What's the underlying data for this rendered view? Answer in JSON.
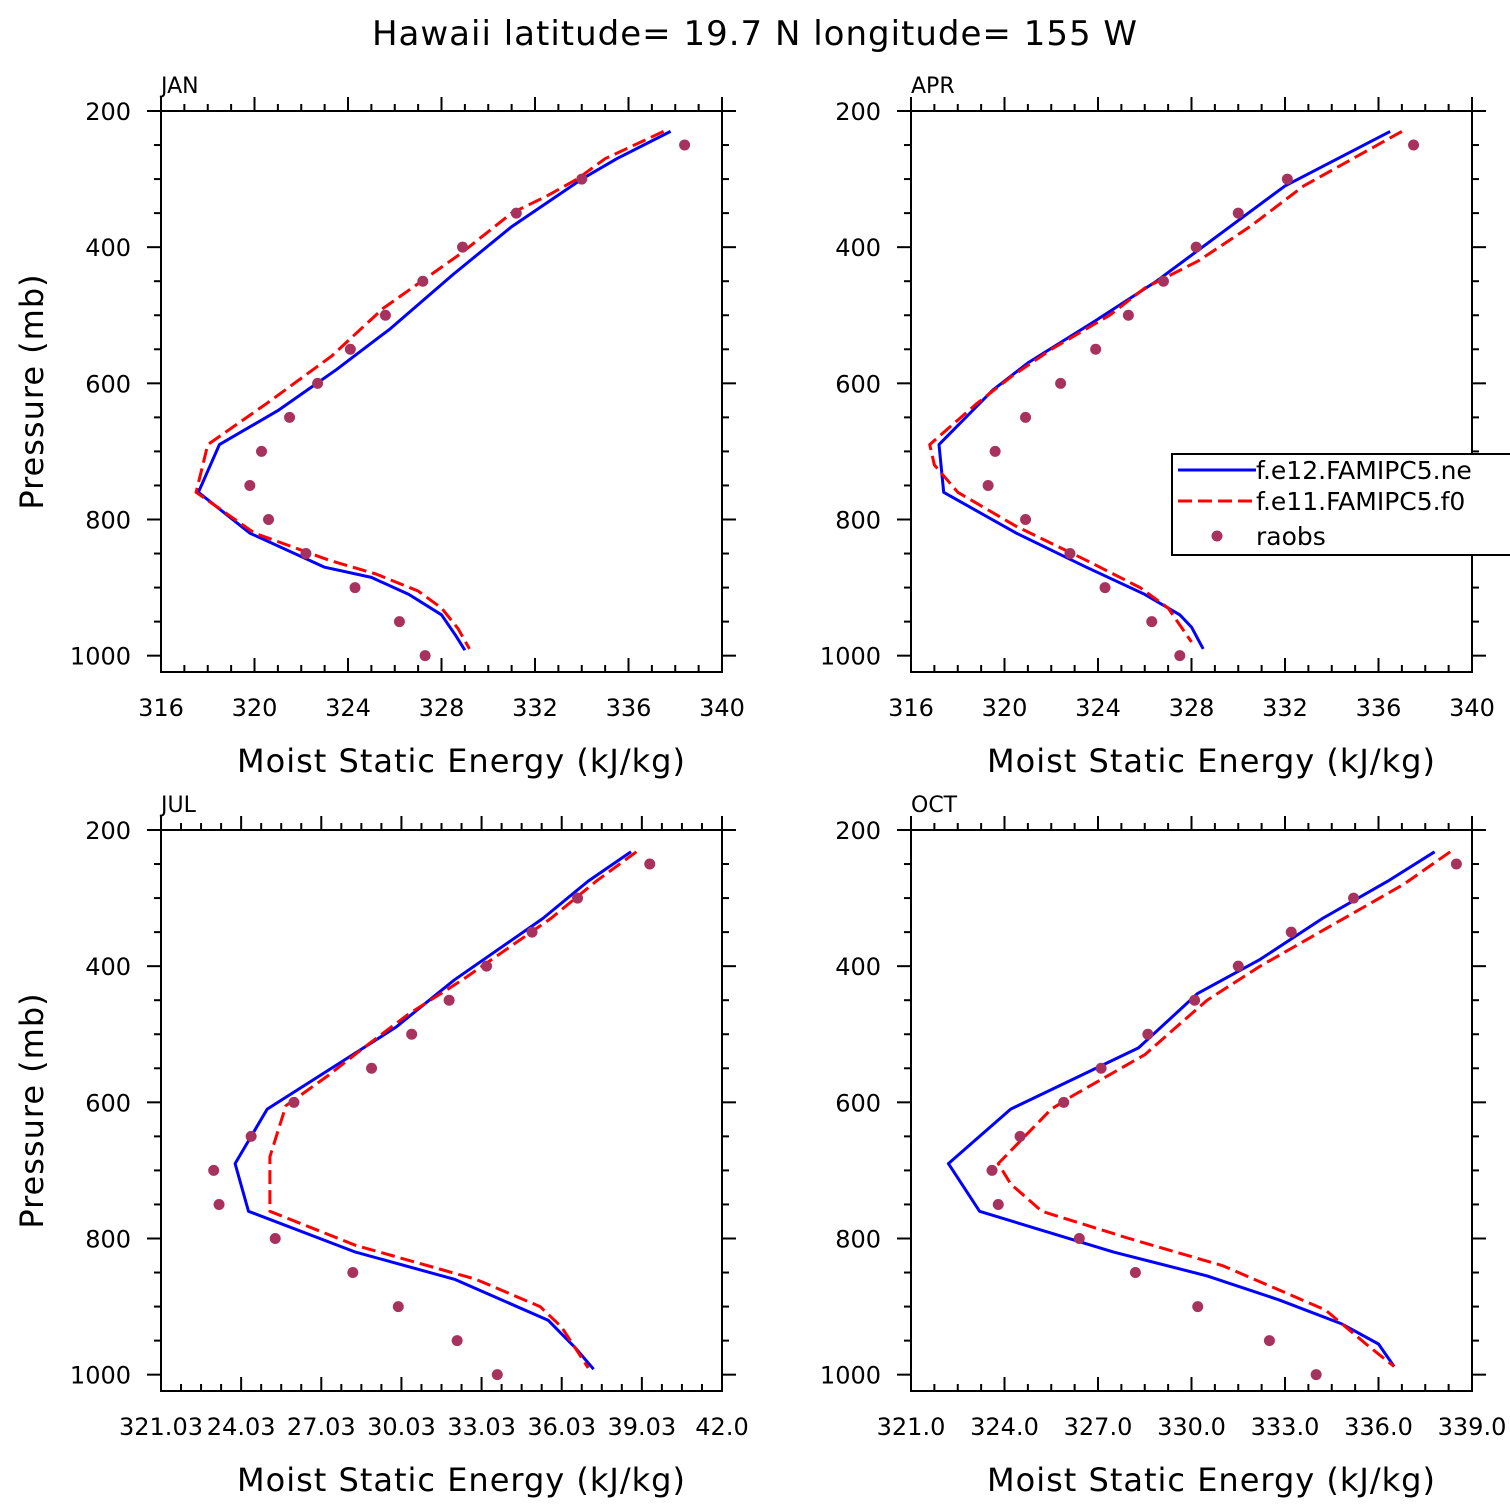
{
  "title": "Hawaii  latitude= 19.7 N longitude= 155 W",
  "legend": {
    "entries": [
      {
        "label": "f.e12.FAMIPC5.ne",
        "style": "solid",
        "color": "#0000ff"
      },
      {
        "label": "f.e11.FAMIPC5.f0",
        "style": "dashed",
        "color": "#ff0000"
      },
      {
        "label": "raobs",
        "style": "marker",
        "color": "#a8325e"
      }
    ]
  },
  "chart_data": [
    {
      "type": "line",
      "panel": "JAN",
      "xlabel": "Moist Static Energy (kJ/kg)",
      "ylabel": "Pressure (mb)",
      "xlim": [
        316,
        340
      ],
      "ylim": [
        200,
        1000
      ],
      "x_ticks": [
        "316",
        "320",
        "324",
        "328",
        "332",
        "336",
        "340"
      ],
      "y_ticks": [
        "200",
        "400",
        "600",
        "800",
        "1000"
      ],
      "series": [
        {
          "name": "f.e12.FAMIPC5.ne",
          "points": [
            [
              337.8,
              230
            ],
            [
              335.5,
              270
            ],
            [
              334.0,
              300
            ],
            [
              331.0,
              370
            ],
            [
              328.5,
              440
            ],
            [
              325.8,
              520
            ],
            [
              323.5,
              580
            ],
            [
              321.0,
              640
            ],
            [
              318.5,
              690
            ],
            [
              317.6,
              760
            ],
            [
              319.8,
              820
            ],
            [
              323.0,
              870
            ],
            [
              325.0,
              885
            ],
            [
              326.6,
              910
            ],
            [
              328.0,
              940
            ],
            [
              328.6,
              970
            ],
            [
              329.0,
              992
            ]
          ]
        },
        {
          "name": "f.e11.FAMIPC5.f0",
          "points": [
            [
              337.5,
              230
            ],
            [
              335.0,
              270
            ],
            [
              333.8,
              300
            ],
            [
              332.5,
              325
            ],
            [
              331.0,
              350
            ],
            [
              328.8,
              410
            ],
            [
              325.5,
              490
            ],
            [
              323.3,
              560
            ],
            [
              320.5,
              630
            ],
            [
              318.0,
              690
            ],
            [
              317.5,
              760
            ],
            [
              320.0,
              820
            ],
            [
              323.2,
              860
            ],
            [
              325.2,
              880
            ],
            [
              327.0,
              905
            ],
            [
              328.0,
              930
            ],
            [
              328.7,
              960
            ],
            [
              329.2,
              990
            ]
          ]
        },
        {
          "name": "raobs",
          "points": [
            [
              338.4,
              250
            ],
            [
              334.0,
              300
            ],
            [
              331.2,
              350
            ],
            [
              328.9,
              400
            ],
            [
              327.2,
              450
            ],
            [
              325.6,
              500
            ],
            [
              324.1,
              550
            ],
            [
              322.7,
              600
            ],
            [
              321.5,
              650
            ],
            [
              320.3,
              700
            ],
            [
              319.8,
              750
            ],
            [
              320.6,
              800
            ],
            [
              322.2,
              850
            ],
            [
              324.3,
              900
            ],
            [
              326.2,
              950
            ],
            [
              327.3,
              1000
            ]
          ]
        }
      ]
    },
    {
      "type": "line",
      "panel": "APR",
      "xlabel": "Moist Static Energy (kJ/kg)",
      "ylabel": "",
      "xlim": [
        316,
        340
      ],
      "ylim": [
        200,
        1000
      ],
      "x_ticks": [
        "316",
        "320",
        "324",
        "328",
        "332",
        "336",
        "340"
      ],
      "y_ticks": [
        "200",
        "400",
        "600",
        "800",
        "1000"
      ],
      "series": [
        {
          "name": "f.e12.FAMIPC5.ne",
          "points": [
            [
              336.5,
              230
            ],
            [
              332.0,
              310
            ],
            [
              326.5,
              450
            ],
            [
              323.8,
              510
            ],
            [
              321.0,
              570
            ],
            [
              319.5,
              610
            ],
            [
              317.2,
              690
            ],
            [
              317.4,
              760
            ],
            [
              320.5,
              820
            ],
            [
              323.5,
              870
            ],
            [
              326.0,
              910
            ],
            [
              327.5,
              940
            ],
            [
              328.0,
              958
            ],
            [
              328.5,
              990
            ]
          ]
        },
        {
          "name": "f.e11.FAMIPC5.f0",
          "points": [
            [
              337.0,
              230
            ],
            [
              332.8,
              310
            ],
            [
              330.5,
              370
            ],
            [
              328.3,
              420
            ],
            [
              326.0,
              460
            ],
            [
              324.5,
              500
            ],
            [
              322.0,
              550
            ],
            [
              320.3,
              590
            ],
            [
              318.8,
              630
            ],
            [
              316.8,
              690
            ],
            [
              317.0,
              720
            ],
            [
              318.0,
              760
            ],
            [
              320.5,
              810
            ],
            [
              323.5,
              860
            ],
            [
              325.8,
              900
            ],
            [
              327.0,
              930
            ],
            [
              327.5,
              955
            ],
            [
              328.0,
              980
            ]
          ]
        },
        {
          "name": "raobs",
          "points": [
            [
              337.5,
              250
            ],
            [
              332.1,
              300
            ],
            [
              330.0,
              350
            ],
            [
              328.2,
              400
            ],
            [
              326.8,
              450
            ],
            [
              325.3,
              500
            ],
            [
              323.9,
              550
            ],
            [
              322.4,
              600
            ],
            [
              320.9,
              650
            ],
            [
              319.6,
              700
            ],
            [
              319.3,
              750
            ],
            [
              320.9,
              800
            ],
            [
              322.8,
              850
            ],
            [
              324.3,
              900
            ],
            [
              326.3,
              950
            ],
            [
              327.5,
              1000
            ]
          ]
        }
      ]
    },
    {
      "type": "line",
      "panel": "JUL",
      "xlabel": "Moist Static Energy (kJ/kg)",
      "ylabel": "Pressure (mb)",
      "xlim": [
        321.03,
        342.0
      ],
      "ylim": [
        200,
        1000
      ],
      "x_ticks": [
        "321.03",
        "24.03",
        "27.03",
        "30.03",
        "33.03",
        "36.03",
        "39.03",
        "42.0"
      ],
      "series": [
        {
          "name": "f.e12.FAMIPC5.ne",
          "points": [
            [
              338.6,
              232
            ],
            [
              337.0,
              275
            ],
            [
              335.3,
              330
            ],
            [
              332.0,
              420
            ],
            [
              329.8,
              490
            ],
            [
              327.8,
              540
            ],
            [
              325.0,
              610
            ],
            [
              323.8,
              690
            ],
            [
              324.3,
              760
            ],
            [
              328.3,
              820
            ],
            [
              332.0,
              860
            ],
            [
              335.5,
              920
            ],
            [
              336.5,
              960
            ],
            [
              337.2,
              992
            ]
          ]
        },
        {
          "name": "f.e11.FAMIPC5.f0",
          "points": [
            [
              338.8,
              232
            ],
            [
              337.3,
              275
            ],
            [
              335.6,
              330
            ],
            [
              332.3,
              420
            ],
            [
              330.3,
              470
            ],
            [
              328.6,
              520
            ],
            [
              327.3,
              560
            ],
            [
              325.7,
              605
            ],
            [
              325.1,
              680
            ],
            [
              325.1,
              760
            ],
            [
              328.3,
              810
            ],
            [
              332.8,
              860
            ],
            [
              335.2,
              900
            ],
            [
              336.0,
              930
            ],
            [
              336.5,
              960
            ],
            [
              337.0,
              990
            ]
          ]
        },
        {
          "name": "raobs",
          "points": [
            [
              339.3,
              250
            ],
            [
              336.6,
              300
            ],
            [
              334.9,
              350
            ],
            [
              333.2,
              400
            ],
            [
              331.8,
              450
            ],
            [
              330.4,
              500
            ],
            [
              328.9,
              550
            ],
            [
              326.0,
              600
            ],
            [
              324.4,
              650
            ],
            [
              323.0,
              700
            ],
            [
              323.2,
              750
            ],
            [
              325.3,
              800
            ],
            [
              328.2,
              850
            ],
            [
              329.9,
              900
            ],
            [
              332.1,
              950
            ],
            [
              333.6,
              1000
            ]
          ]
        }
      ]
    },
    {
      "type": "line",
      "panel": "OCT",
      "xlabel": "Moist Static Energy (kJ/kg)",
      "ylabel": "",
      "xlim": [
        321.0,
        339.0
      ],
      "ylim": [
        200,
        1000
      ],
      "x_ticks": [
        "321.0",
        "324.0",
        "327.0",
        "330.0",
        "333.0",
        "336.0",
        "339.0"
      ],
      "y_ticks": [
        "200",
        "400",
        "600",
        "800",
        "1000"
      ],
      "series": [
        {
          "name": "f.e12.FAMIPC5.ne",
          "points": [
            [
              337.8,
              232
            ],
            [
              336.3,
              275
            ],
            [
              334.2,
              330
            ],
            [
              332.2,
              390
            ],
            [
              330.2,
              440
            ],
            [
              328.3,
              520
            ],
            [
              324.2,
              610
            ],
            [
              322.2,
              690
            ],
            [
              323.2,
              760
            ],
            [
              327.5,
              820
            ],
            [
              330.5,
              855
            ],
            [
              332.8,
              890
            ],
            [
              334.8,
              925
            ],
            [
              336.0,
              955
            ],
            [
              336.5,
              988
            ]
          ]
        },
        {
          "name": "f.e11.FAMIPC5.f0",
          "points": [
            [
              338.3,
              232
            ],
            [
              336.8,
              280
            ],
            [
              334.5,
              340
            ],
            [
              332.2,
              400
            ],
            [
              330.5,
              450
            ],
            [
              329.5,
              490
            ],
            [
              328.5,
              530
            ],
            [
              326.2,
              590
            ],
            [
              325.5,
              610
            ],
            [
              323.8,
              690
            ],
            [
              324.2,
              720
            ],
            [
              325.2,
              760
            ],
            [
              328.0,
              800
            ],
            [
              331.0,
              840
            ],
            [
              334.3,
              905
            ],
            [
              335.6,
              955
            ],
            [
              336.5,
              988
            ]
          ]
        },
        {
          "name": "raobs",
          "points": [
            [
              338.5,
              250
            ],
            [
              335.2,
              300
            ],
            [
              333.2,
              350
            ],
            [
              331.5,
              400
            ],
            [
              330.1,
              450
            ],
            [
              328.6,
              500
            ],
            [
              327.1,
              550
            ],
            [
              325.9,
              600
            ],
            [
              324.5,
              650
            ],
            [
              323.6,
              700
            ],
            [
              323.8,
              750
            ],
            [
              326.4,
              800
            ],
            [
              328.2,
              850
            ],
            [
              330.2,
              900
            ],
            [
              332.5,
              950
            ],
            [
              334.0,
              1000
            ]
          ]
        }
      ]
    }
  ]
}
